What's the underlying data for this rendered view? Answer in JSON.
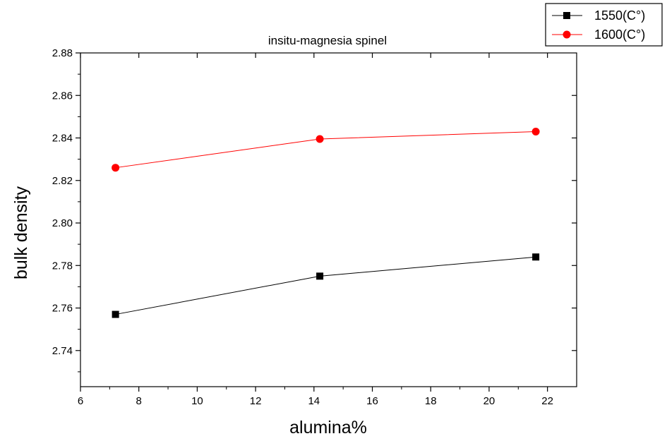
{
  "chart_data": {
    "type": "line",
    "title": "insitu-magnesia spinel",
    "xlabel": "alumina%",
    "ylabel": "bulk density",
    "xlim": [
      6,
      23
    ],
    "ylim": [
      2.723,
      2.88
    ],
    "xticks": [
      6,
      8,
      10,
      12,
      14,
      16,
      18,
      20,
      22
    ],
    "yticks": [
      2.74,
      2.76,
      2.78,
      2.8,
      2.82,
      2.84,
      2.86,
      2.88
    ],
    "ytick_labels": [
      "2.74",
      "2.76",
      "2.78",
      "2.80",
      "2.82",
      "2.84",
      "2.86",
      "2.88"
    ],
    "grid": false,
    "legend_position": "top-right, outside plot",
    "x": [
      7.2,
      14.2,
      21.6
    ],
    "series": [
      {
        "name": "1550(C°)",
        "values": [
          2.757,
          2.775,
          2.784
        ],
        "color": "#000000",
        "marker": "square"
      },
      {
        "name": "1600(C°)",
        "values": [
          2.826,
          2.8395,
          2.843
        ],
        "color": "#ff0000",
        "marker": "circle"
      }
    ]
  }
}
